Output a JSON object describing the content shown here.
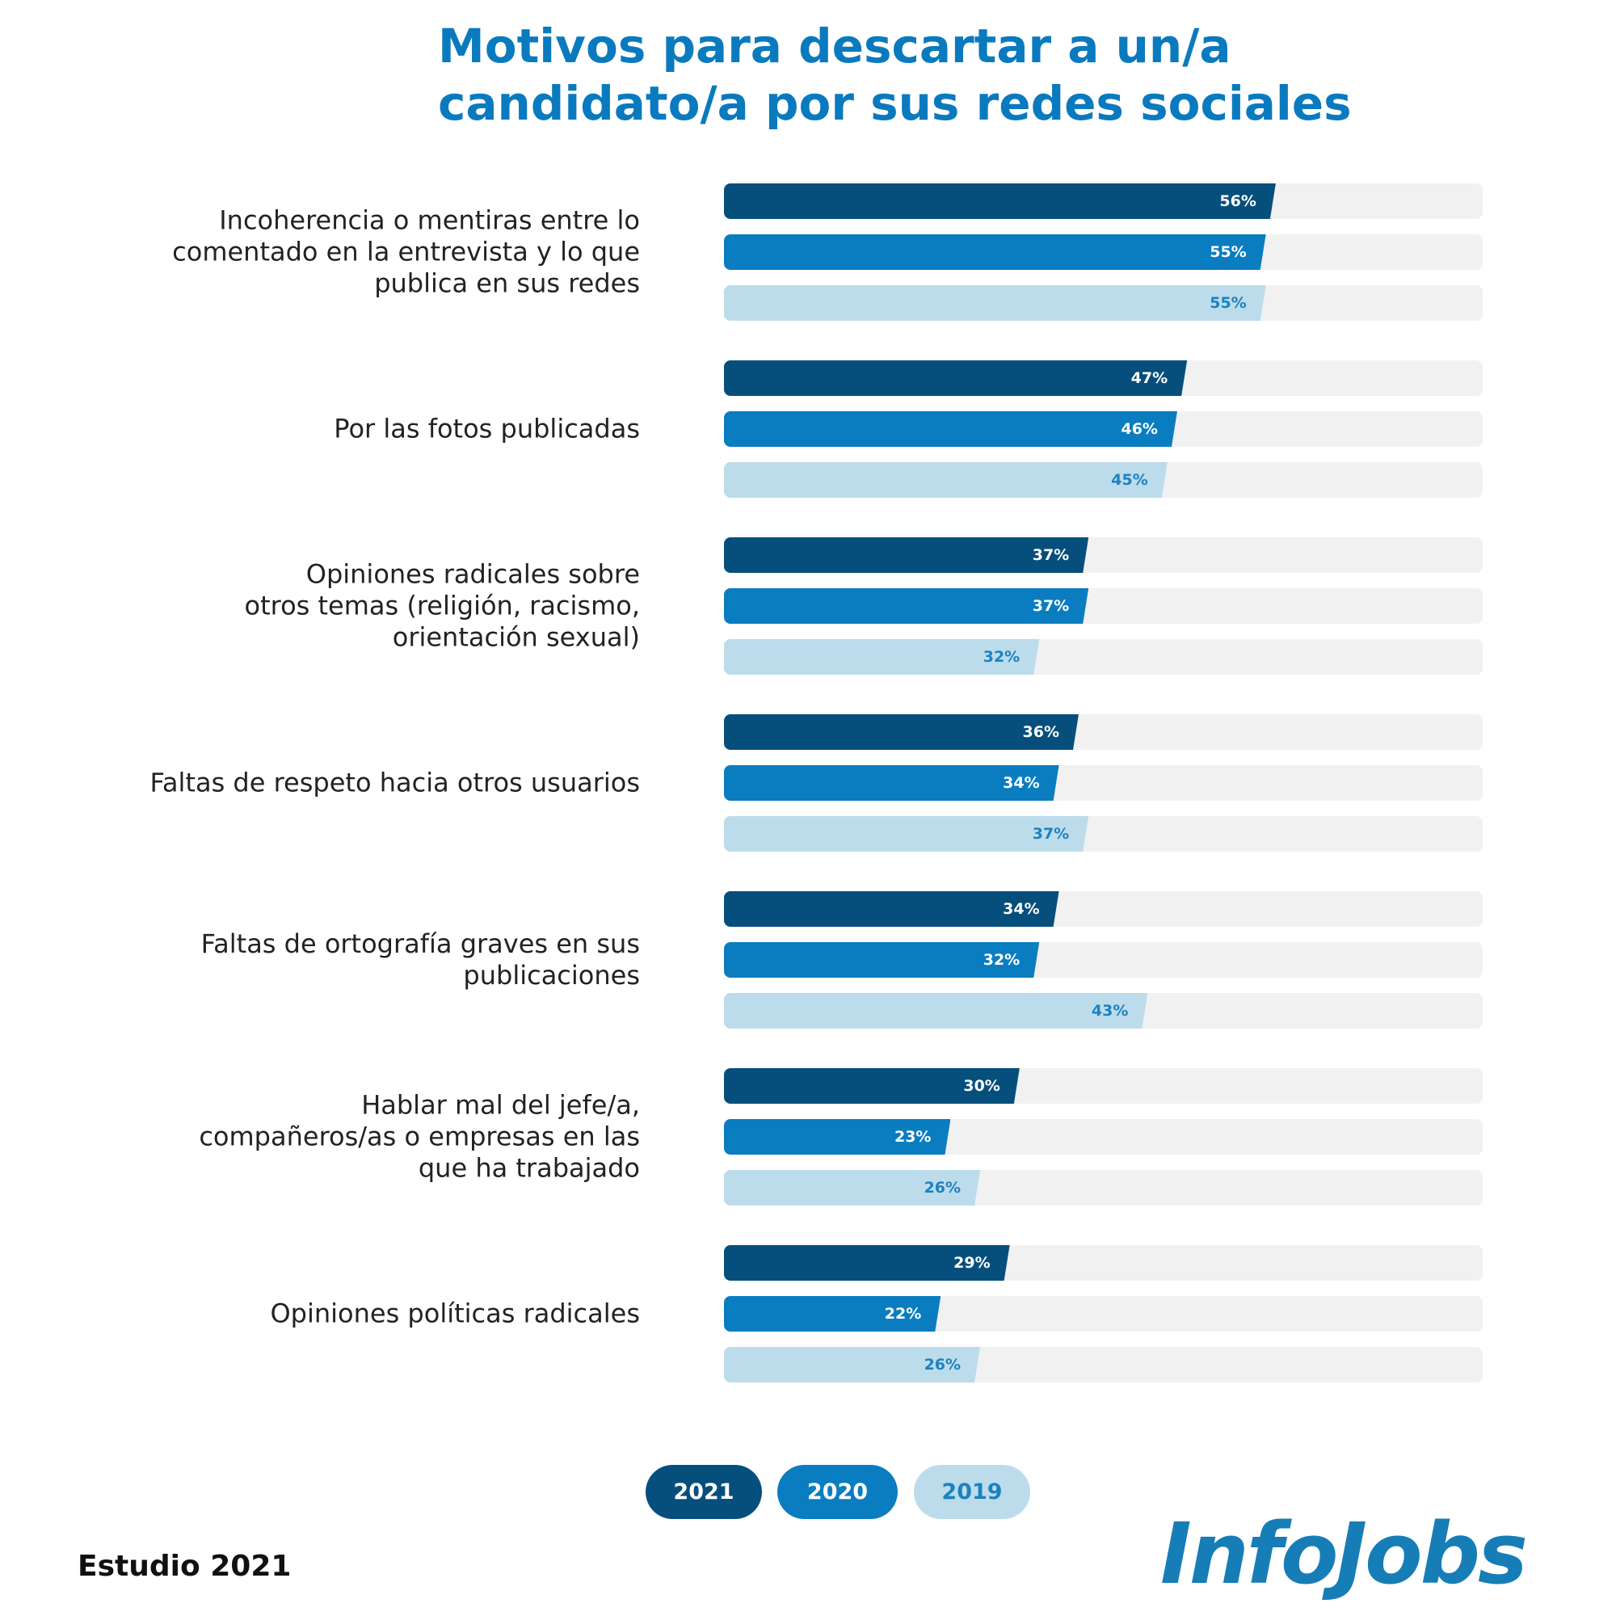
{
  "chart_data": {
    "type": "bar",
    "orientation": "horizontal",
    "title": "Motivos para descartar a un/a\ncandidato/a por sus redes sociales",
    "categories": [
      "Incoherencia o mentiras entre lo\ncomentado en la entrevista y lo que\npublica en sus redes",
      "Por las fotos publicadas",
      "Opiniones radicales sobre\notros temas (religión, racismo,\norientación sexual)",
      "Faltas de respeto hacia otros usuarios",
      "Faltas de ortografía graves en sus\npublicaciones",
      "Hablar mal del jefe/a,\ncompañeros/as o empresas en las\nque ha trabajado",
      "Opiniones políticas radicales"
    ],
    "series": [
      {
        "name": "2021",
        "color": "#064f7d",
        "label_color": "#ffffff",
        "values": [
          56,
          47,
          37,
          36,
          34,
          30,
          29
        ],
        "value_labels": [
          "56%",
          "47%",
          "37%",
          "36%",
          "34%",
          "30%",
          "29%"
        ]
      },
      {
        "name": "2020",
        "color": "#0a7dc0",
        "label_color": "#ffffff",
        "values": [
          55,
          46,
          37,
          34,
          32,
          23,
          22
        ],
        "value_labels": [
          "55%",
          "46%",
          "37%",
          "34%",
          "32%",
          "23%",
          "22%"
        ]
      },
      {
        "name": "2019",
        "color": "#bcdcec",
        "label_color": "#1c82bf",
        "values": [
          55,
          45,
          32,
          37,
          43,
          26,
          26
        ],
        "value_labels": [
          "55%",
          "45%",
          "32%",
          "37%",
          "43%",
          "26%",
          "26%"
        ]
      }
    ],
    "xlim": [
      0,
      77
    ],
    "source": "Estudio 2021",
    "logo": "InfoJobs"
  }
}
